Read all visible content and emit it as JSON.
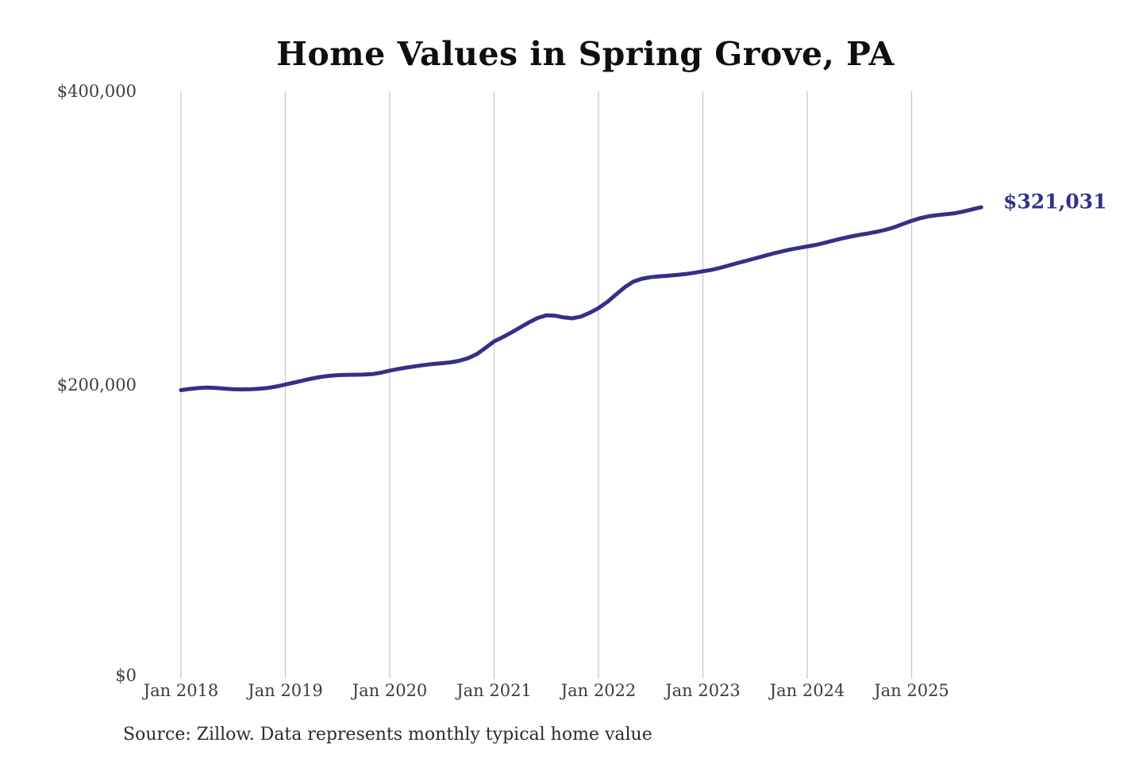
{
  "title": "Home Values in Spring Grove, PA",
  "source_note": "Source: Zillow. Data represents monthly typical home value",
  "end_label": "$321,031",
  "colors": {
    "line": "#34308a",
    "end_label": "#34308a",
    "axis_text": "#3d3d3d",
    "gridline": "#c9c9c9",
    "title": "#0f0f0f",
    "background": "#ffffff"
  },
  "chart_data": {
    "type": "line",
    "title": "Home Values in Spring Grove, PA",
    "xlabel": "",
    "ylabel": "",
    "x_start": "2018-01",
    "x_end": "2025-09",
    "frequency": "monthly",
    "ylim": [
      0,
      400000
    ],
    "y_ticks": [
      0,
      200000,
      400000
    ],
    "y_tick_labels": [
      "$0",
      "$200,000",
      "$400,000"
    ],
    "x_tick_labels": [
      "Jan 2018",
      "Jan 2019",
      "Jan 2020",
      "Jan 2021",
      "Jan 2022",
      "Jan 2023",
      "Jan 2024",
      "Jan 2025"
    ],
    "grid": "vertical-only",
    "legend": "none",
    "last_value": 321031,
    "series": [
      {
        "name": "Monthly typical home value",
        "values": [
          196500,
          197300,
          197900,
          198200,
          198000,
          197500,
          197100,
          197000,
          197100,
          197400,
          198000,
          199000,
          200300,
          201600,
          203000,
          204300,
          205400,
          206200,
          206700,
          206900,
          207000,
          207100,
          207400,
          208400,
          209800,
          210900,
          211900,
          212800,
          213600,
          214300,
          214800,
          215400,
          216500,
          218200,
          221000,
          225200,
          229700,
          232600,
          235800,
          239200,
          242600,
          245600,
          247400,
          247200,
          246000,
          245400,
          246600,
          249200,
          252300,
          256500,
          261500,
          266500,
          270300,
          272400,
          273400,
          274000,
          274400,
          274900,
          275500,
          276400,
          277400,
          278400,
          279800,
          281400,
          283000,
          284600,
          286200,
          287800,
          289400,
          290800,
          292200,
          293300,
          294300,
          295400,
          296800,
          298300,
          299800,
          301100,
          302200,
          303200,
          304300,
          305700,
          307400,
          309600,
          311800,
          313600,
          314900,
          315700,
          316300,
          317000,
          318200,
          319600,
          321031
        ]
      }
    ]
  }
}
